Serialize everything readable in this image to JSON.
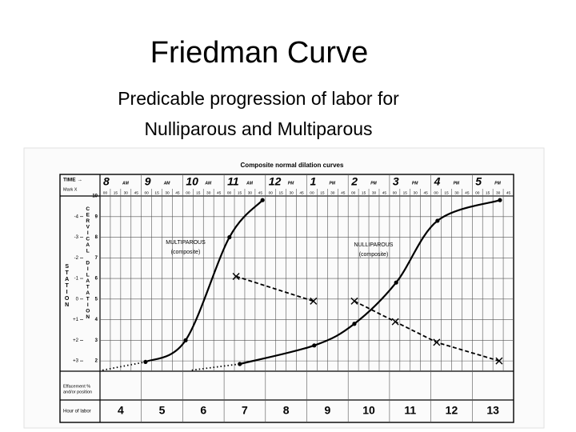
{
  "slide_title": "Friedman Curve",
  "subtitle_lines": [
    "Predicable progression of labor for",
    "Nulliparous and Multiparous"
  ],
  "chart_data": {
    "type": "line",
    "title": "Composite normal dilation curves",
    "time_label": "TIME →",
    "mark_label": "Mark X",
    "clock_hours": [
      "8",
      "9",
      "10",
      "11",
      "12",
      "1",
      "2",
      "3",
      "4",
      "5"
    ],
    "clock_suffix": [
      "AM",
      "AM",
      "AM",
      "AM",
      "PM",
      "PM",
      "PM",
      "PM",
      "PM",
      "PM"
    ],
    "minute_labels": [
      "00",
      "15",
      "30",
      "45"
    ],
    "y_label": "CERVICAL DILATATION",
    "y2_label": "STATION",
    "effacement_label": [
      "Effacement %",
      "and/or position"
    ],
    "x_label": "Hour of labor",
    "xlim": [
      3.5,
      13.5
    ],
    "xticks": [
      4,
      5,
      6,
      7,
      8,
      9,
      10,
      11,
      12,
      13
    ],
    "ylim": [
      1.5,
      10
    ],
    "yticks": [
      2,
      3,
      4,
      5,
      6,
      7,
      8,
      9,
      10
    ],
    "y2lim": [
      3.5,
      -5
    ],
    "y2ticks": [
      -4,
      -3,
      -2,
      -1,
      0,
      {
        "value": 1,
        "label": "+1"
      },
      {
        "value": 2,
        "label": "+2"
      },
      {
        "value": 3,
        "label": "+3"
      }
    ],
    "grid": true,
    "annotations": [
      "MULTIPAROUS",
      "(composite)",
      "NULLIPAROUS",
      "(composite)"
    ],
    "series": [
      {
        "color": "#000000",
        "style": "dotted",
        "marker": "none",
        "x": [
          3.56,
          4.6
        ],
        "values": [
          1.55,
          1.95
        ]
      },
      {
        "color": "#000000",
        "style": "solid",
        "marker": "dot",
        "x": [
          4.6,
          5.57,
          6.63,
          7.43
        ],
        "values": [
          1.95,
          3,
          8,
          9.8
        ]
      },
      {
        "color": "#000000",
        "style": "dotted",
        "marker": "none",
        "x": [
          5.72,
          6.88
        ],
        "values": [
          1.55,
          1.85
        ]
      },
      {
        "color": "#000000",
        "style": "solid",
        "marker": "dot",
        "x": [
          6.88,
          8.68,
          9.65,
          10.66,
          11.66,
          13.17
        ],
        "values": [
          1.85,
          2.75,
          3.8,
          5.8,
          8.8,
          9.8
        ]
      },
      {
        "color": "#000000",
        "style": "dashed",
        "marker": "x",
        "axis": "y2",
        "x": [
          6.79,
          8.66
        ],
        "values": [
          -1.1,
          0.1
        ]
      },
      {
        "color": "#000000",
        "style": "dashed",
        "marker": "x",
        "axis": "y2",
        "x": [
          9.65,
          10.64,
          11.64,
          13.15
        ],
        "values": [
          0.1,
          1.1,
          2.1,
          3.0
        ]
      }
    ]
  }
}
